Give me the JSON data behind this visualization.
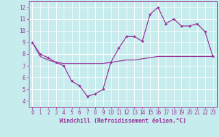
{
  "xlabel": "Windchill (Refroidissement éolien,°C)",
  "background_color": "#c6ecee",
  "grid_color": "#ffffff",
  "line_color": "#993399",
  "xlim": [
    -0.5,
    23.5
  ],
  "ylim": [
    3.5,
    12.5
  ],
  "yticks": [
    4,
    5,
    6,
    7,
    8,
    9,
    10,
    11,
    12
  ],
  "xticks": [
    0,
    1,
    2,
    3,
    4,
    5,
    6,
    7,
    8,
    9,
    10,
    11,
    12,
    13,
    14,
    15,
    16,
    17,
    18,
    19,
    20,
    21,
    22,
    23
  ],
  "line1_x": [
    0,
    1,
    2,
    3,
    4,
    5,
    6,
    7,
    8,
    9,
    10,
    11,
    12,
    13,
    14,
    15,
    16,
    17,
    18,
    19,
    20,
    21,
    22,
    23
  ],
  "line1_y": [
    9.0,
    8.0,
    7.7,
    7.3,
    7.0,
    5.7,
    5.3,
    4.4,
    4.6,
    5.0,
    7.3,
    8.5,
    9.5,
    9.5,
    9.1,
    11.4,
    12.0,
    10.6,
    11.0,
    10.4,
    10.4,
    10.6,
    9.9,
    7.8
  ],
  "line2_x": [
    0,
    1,
    2,
    3,
    4,
    5,
    6,
    7,
    8,
    9,
    10,
    11,
    12,
    13,
    14,
    15,
    16,
    17,
    18,
    19,
    20,
    21,
    22,
    23
  ],
  "line2_y": [
    9.0,
    7.8,
    7.5,
    7.3,
    7.2,
    7.2,
    7.2,
    7.2,
    7.2,
    7.2,
    7.3,
    7.4,
    7.5,
    7.5,
    7.6,
    7.7,
    7.8,
    7.8,
    7.8,
    7.8,
    7.8,
    7.8,
    7.8,
    7.8
  ],
  "tick_fontsize": 5.5,
  "xlabel_fontsize": 6.0,
  "spine_color": "#993399"
}
